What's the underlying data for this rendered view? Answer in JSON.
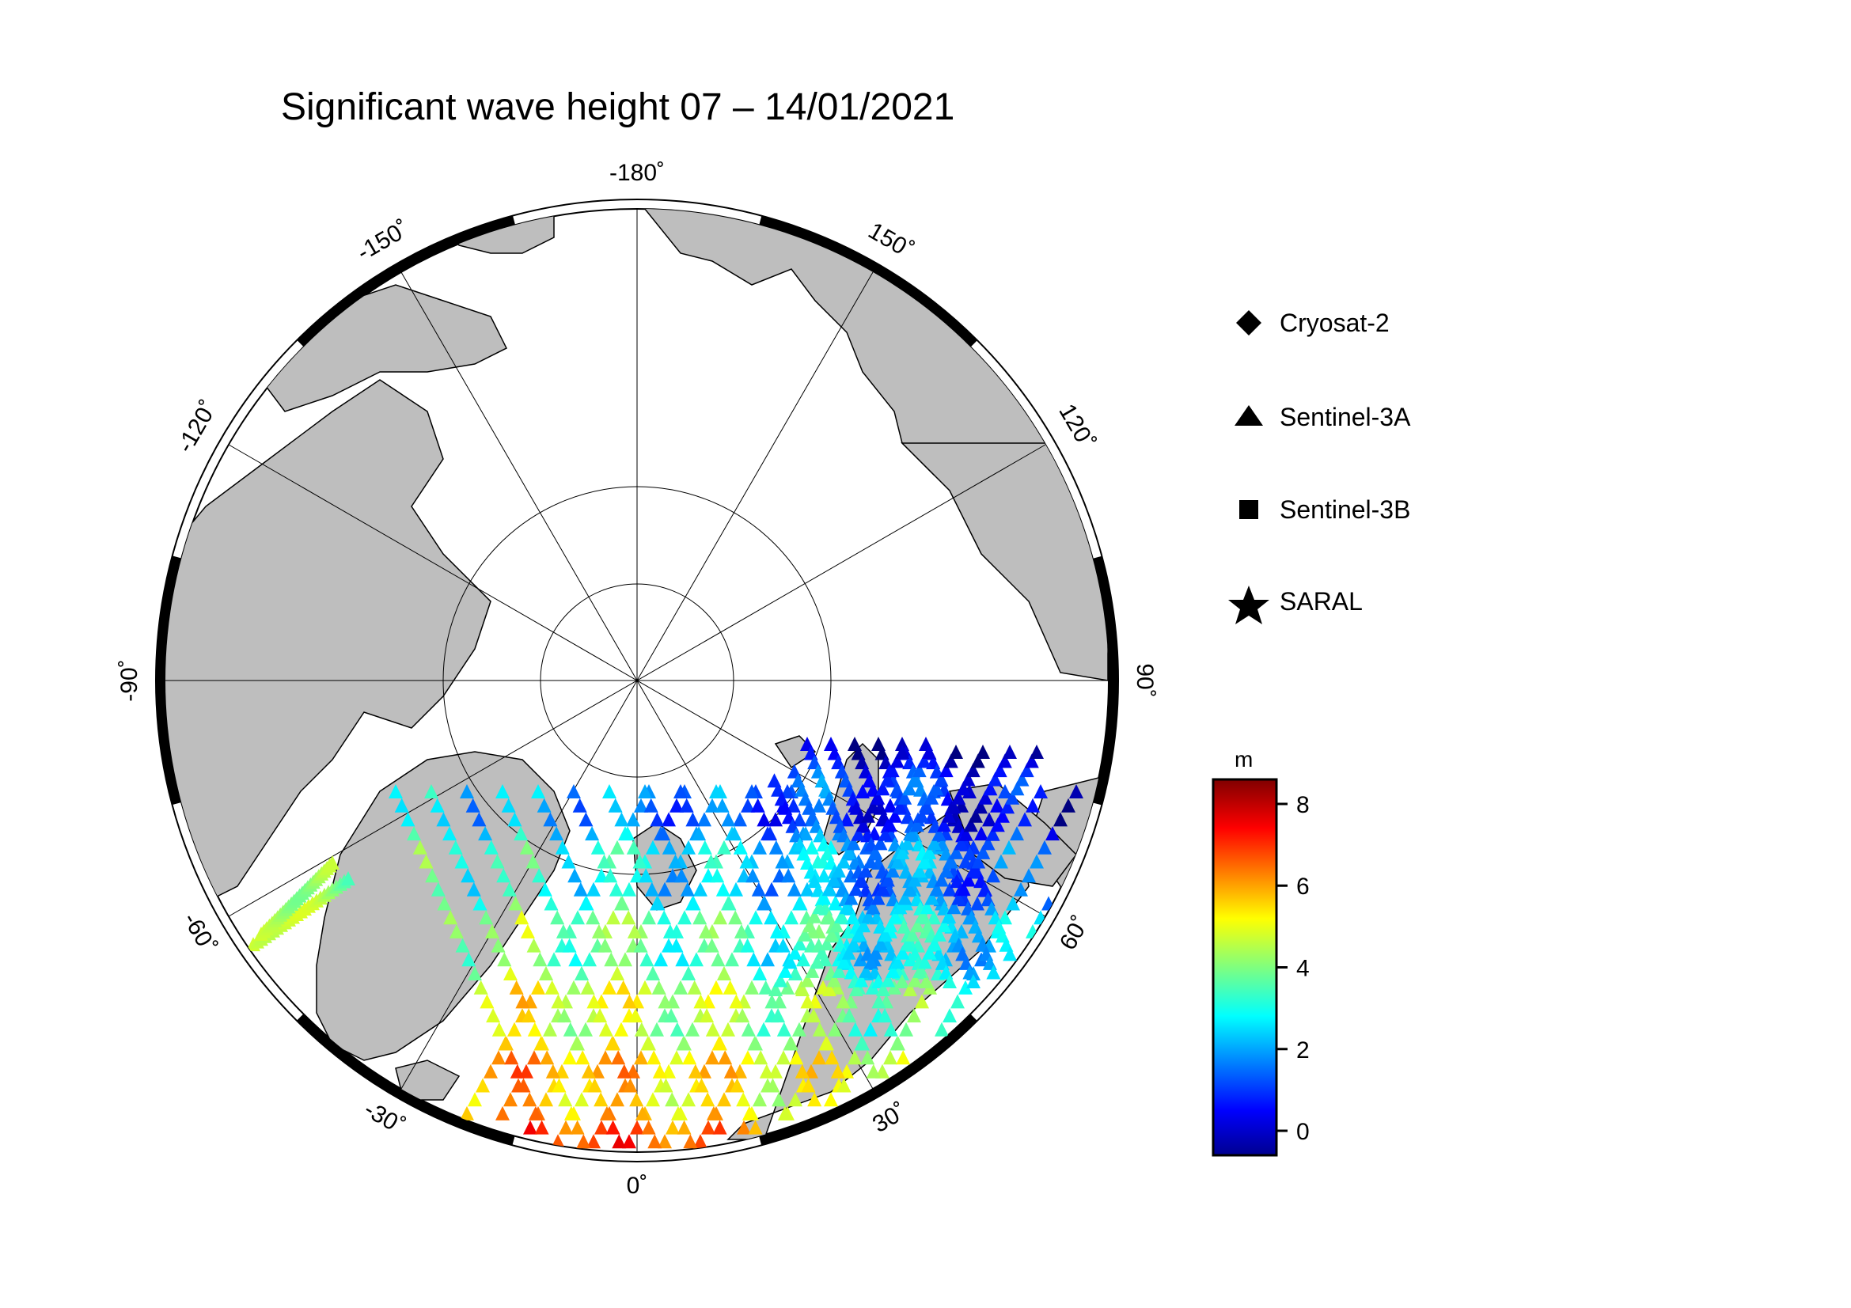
{
  "title": "Significant wave height 07 – 14/01/2021",
  "map": {
    "projection": "north-polar-stereographic",
    "lon_labels": [
      "-180˚",
      "150˚",
      "120˚",
      "90˚",
      "60˚",
      "30˚",
      "0˚",
      "-30˚",
      "-60˚",
      "-90˚",
      "-120˚",
      "-150˚"
    ],
    "land_color": "#bebebe",
    "ocean_color": "#ffffff"
  },
  "legend": {
    "items": [
      {
        "label": "Cryosat-2",
        "symbol": "diamond-icon"
      },
      {
        "label": "Sentinel-3A",
        "symbol": "triangle-icon"
      },
      {
        "label": "Sentinel-3B",
        "symbol": "square-icon"
      },
      {
        "label": "SARAL",
        "symbol": "star-icon"
      }
    ]
  },
  "colorbar": {
    "unit": "m",
    "min": -0.6,
    "max": 8.6,
    "ticks": [
      "0",
      "2",
      "4",
      "6",
      "8"
    ],
    "colormap": "jet"
  }
}
